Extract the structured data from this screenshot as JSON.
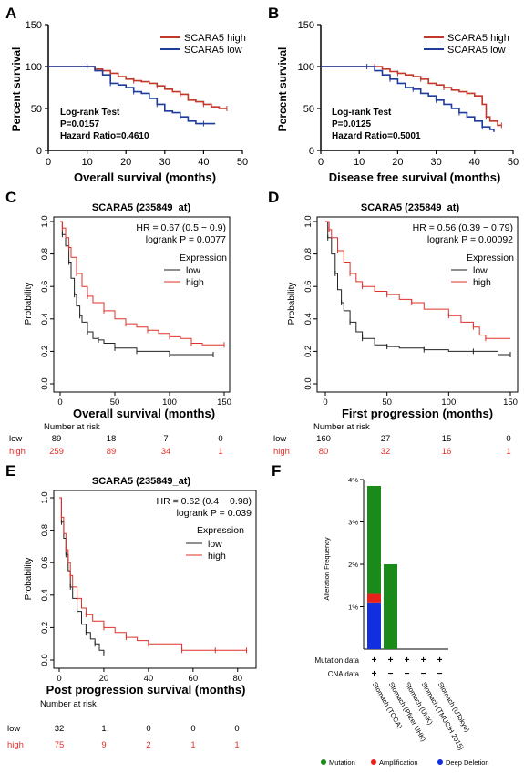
{
  "panel_letters": [
    "A",
    "B",
    "C",
    "D",
    "E",
    "F"
  ],
  "colors": {
    "high": "#c0392b",
    "low": "#1f3c9b",
    "kmHigh": "#e0302a",
    "kmLow": "#222222",
    "mutation": "#1a8a1a",
    "amplification": "#e8201a",
    "deletion": "#1030e0"
  },
  "panelA": {
    "xlabel": "Overall survival (months)",
    "ylabel": "Percent survival",
    "legend_high": "SCARA5 high",
    "legend_low": "SCARA5 low",
    "stat1": "Log-rank Test",
    "stat2": "P=0.0157",
    "stat3": "Hazard  Ratio=0.4610",
    "xticks": [
      "0",
      "10",
      "20",
      "30",
      "40",
      "50"
    ],
    "yticks": [
      "0",
      "50",
      "100",
      "150"
    ]
  },
  "panelB": {
    "xlabel": "Disease free survival (months)",
    "ylabel": "Percent survival",
    "legend_high": "SCARA5 high",
    "legend_low": "SCARA5 low",
    "stat1": "Log-rank Test",
    "stat2": "P=0.0125",
    "stat3": "Hazard  Ratio=0.5001",
    "xticks": [
      "0",
      "10",
      "20",
      "30",
      "40",
      "50"
    ],
    "yticks": [
      "0",
      "50",
      "100",
      "150"
    ]
  },
  "panelC": {
    "title": "SCARA5 (235849_at)",
    "hr": "HR = 0.67 (0.5 − 0.9)",
    "logrank": "logrank P = 0.0077",
    "legend_title": "Expression",
    "legend_low": "low",
    "legend_high": "high",
    "ylabel": "Probability",
    "xlabel": "Overall survival (months)",
    "xticks": [
      "0",
      "50",
      "100",
      "150"
    ],
    "yticks": [
      "0.0",
      "0.2",
      "0.4",
      "0.6",
      "0.8",
      "1.0"
    ],
    "risk_title": "Number at risk",
    "risk_low_label": "low",
    "risk_low": [
      "89",
      "18",
      "7",
      "0"
    ],
    "risk_high_label": "high",
    "risk_high": [
      "259",
      "89",
      "34",
      "1"
    ]
  },
  "panelD": {
    "title": "SCARA5 (235849_at)",
    "hr": "HR = 0.56 (0.39 − 0.79)",
    "logrank": "logrank P = 0.00092",
    "legend_title": "Expression",
    "legend_low": "low",
    "legend_high": "high",
    "ylabel": "Probability",
    "xlabel": "First progression (months)",
    "xticks": [
      "0",
      "50",
      "100",
      "150"
    ],
    "yticks": [
      "0.0",
      "0.2",
      "0.4",
      "0.6",
      "0.8",
      "1.0"
    ],
    "risk_title": "Number at risk",
    "risk_low_label": "low",
    "risk_low": [
      "160",
      "27",
      "15",
      "0"
    ],
    "risk_high_label": "high",
    "risk_high": [
      "80",
      "32",
      "16",
      "1"
    ]
  },
  "panelE": {
    "title": "SCARA5 (235849_at)",
    "hr": "HR = 0.62 (0.4 − 0.98)",
    "logrank": "logrank P = 0.039",
    "legend_title": "Expression",
    "legend_low": "low",
    "legend_high": "high",
    "ylabel": "Probability",
    "xlabel": "Post progression survival (months)",
    "xticks": [
      "0",
      "20",
      "40",
      "60",
      "80"
    ],
    "yticks": [
      "0.0",
      "0.2",
      "0.4",
      "0.6",
      "0.8",
      "1.0"
    ],
    "risk_title": "Number at risk",
    "risk_low_label": "low",
    "risk_low": [
      "32",
      "1",
      "0",
      "0",
      "0"
    ],
    "risk_high_label": "high",
    "risk_high": [
      "75",
      "9",
      "2",
      "1",
      "1"
    ]
  },
  "panelF": {
    "ylabel": "Alteration Frequency",
    "yticks": [
      "1%",
      "2%",
      "3%",
      "4%"
    ],
    "row1": "Mutation data",
    "row2": "CNA data",
    "studies": [
      "Stomach (TCGA)",
      "Stomach (Pfizer UHK)",
      "Stomach (UHK)",
      "Stomach (TMUCIH 2015)",
      "Stomach (UTokyo)"
    ],
    "legend": [
      "Mutation",
      "Amplification",
      "Deep Deletion"
    ]
  },
  "chart_data": [
    {
      "type": "line",
      "title": "",
      "xlabel": "Overall survival (months)",
      "ylabel": "Percent survival",
      "xlim": [
        0,
        50
      ],
      "ylim": [
        0,
        150
      ],
      "series": [
        {
          "name": "SCARA5 high",
          "x": [
            0,
            10,
            12,
            14,
            16,
            18,
            20,
            22,
            24,
            26,
            28,
            30,
            32,
            34,
            36,
            38,
            40,
            42,
            44,
            46
          ],
          "y": [
            100,
            100,
            97,
            95,
            92,
            88,
            85,
            83,
            82,
            80,
            77,
            73,
            70,
            67,
            60,
            58,
            55,
            52,
            50,
            50
          ]
        },
        {
          "name": "SCARA5 low",
          "x": [
            0,
            10,
            12,
            14,
            16,
            18,
            20,
            22,
            24,
            26,
            28,
            30,
            32,
            34,
            36,
            38,
            40,
            42,
            43
          ],
          "y": [
            100,
            100,
            95,
            90,
            80,
            78,
            75,
            70,
            68,
            62,
            55,
            47,
            45,
            40,
            35,
            32,
            32,
            32,
            32
          ]
        }
      ]
    },
    {
      "type": "line",
      "title": "",
      "xlabel": "Disease free survival (months)",
      "ylabel": "Percent survival",
      "xlim": [
        0,
        50
      ],
      "ylim": [
        0,
        150
      ],
      "series": [
        {
          "name": "SCARA5 high",
          "x": [
            0,
            14,
            16,
            18,
            20,
            22,
            24,
            26,
            28,
            30,
            32,
            34,
            36,
            38,
            40,
            42,
            43,
            44,
            46,
            47
          ],
          "y": [
            100,
            100,
            97,
            94,
            92,
            90,
            88,
            85,
            80,
            78,
            75,
            72,
            70,
            68,
            65,
            55,
            40,
            35,
            30,
            30
          ]
        },
        {
          "name": "SCARA5 low",
          "x": [
            0,
            12,
            14,
            16,
            18,
            20,
            22,
            24,
            26,
            28,
            30,
            32,
            34,
            36,
            38,
            40,
            42,
            44,
            45
          ],
          "y": [
            100,
            100,
            95,
            90,
            85,
            80,
            75,
            73,
            68,
            65,
            60,
            55,
            50,
            45,
            40,
            35,
            28,
            25,
            22
          ]
        }
      ]
    },
    {
      "type": "line",
      "title": "SCARA5 (235849_at)",
      "xlabel": "Overall survival (months)",
      "ylabel": "Probability",
      "xlim": [
        0,
        150
      ],
      "ylim": [
        0,
        1
      ],
      "series": [
        {
          "name": "low",
          "x": [
            0,
            2,
            5,
            8,
            10,
            13,
            15,
            18,
            20,
            25,
            30,
            35,
            40,
            50,
            60,
            70,
            80,
            100,
            120,
            140
          ],
          "y": [
            1,
            0.92,
            0.85,
            0.75,
            0.65,
            0.55,
            0.48,
            0.42,
            0.38,
            0.32,
            0.28,
            0.27,
            0.25,
            0.22,
            0.22,
            0.2,
            0.2,
            0.18,
            0.18,
            0.18
          ]
        },
        {
          "name": "high",
          "x": [
            0,
            2,
            5,
            8,
            10,
            15,
            20,
            25,
            30,
            40,
            50,
            60,
            70,
            80,
            90,
            100,
            110,
            120,
            130,
            150
          ],
          "y": [
            1,
            0.96,
            0.9,
            0.84,
            0.78,
            0.68,
            0.6,
            0.54,
            0.5,
            0.45,
            0.4,
            0.37,
            0.35,
            0.33,
            0.31,
            0.29,
            0.28,
            0.25,
            0.24,
            0.24
          ]
        }
      ]
    },
    {
      "type": "line",
      "title": "SCARA5 (235849_at)",
      "xlabel": "First progression (months)",
      "ylabel": "Probability",
      "xlim": [
        0,
        150
      ],
      "ylim": [
        0,
        1
      ],
      "series": [
        {
          "name": "low",
          "x": [
            0,
            2,
            5,
            8,
            10,
            13,
            15,
            20,
            25,
            30,
            40,
            50,
            60,
            80,
            100,
            120,
            140,
            150
          ],
          "y": [
            1,
            0.9,
            0.8,
            0.68,
            0.58,
            0.5,
            0.45,
            0.38,
            0.32,
            0.28,
            0.24,
            0.23,
            0.22,
            0.21,
            0.2,
            0.2,
            0.18,
            0.18
          ]
        },
        {
          "name": "high",
          "x": [
            0,
            3,
            5,
            10,
            15,
            20,
            25,
            30,
            40,
            50,
            60,
            70,
            80,
            100,
            110,
            120,
            125,
            130,
            150
          ],
          "y": [
            1,
            0.95,
            0.9,
            0.82,
            0.75,
            0.68,
            0.63,
            0.6,
            0.57,
            0.55,
            0.52,
            0.5,
            0.46,
            0.42,
            0.38,
            0.35,
            0.3,
            0.28,
            0.28
          ]
        }
      ]
    },
    {
      "type": "line",
      "title": "SCARA5 (235849_at)",
      "xlabel": "Post progression survival (months)",
      "ylabel": "Probability",
      "xlim": [
        0,
        85
      ],
      "ylim": [
        0,
        1
      ],
      "series": [
        {
          "name": "low",
          "x": [
            0,
            1,
            2,
            3,
            4,
            5,
            6,
            8,
            10,
            12,
            14,
            16,
            18,
            20
          ],
          "y": [
            1,
            0.85,
            0.75,
            0.65,
            0.55,
            0.45,
            0.38,
            0.3,
            0.22,
            0.17,
            0.13,
            0.1,
            0.06,
            0.04
          ]
        },
        {
          "name": "high",
          "x": [
            0,
            1,
            2,
            3,
            4,
            5,
            6,
            8,
            10,
            12,
            15,
            20,
            25,
            30,
            35,
            40,
            50,
            55,
            60,
            70,
            80,
            84
          ],
          "y": [
            1,
            0.88,
            0.78,
            0.68,
            0.6,
            0.52,
            0.45,
            0.38,
            0.32,
            0.28,
            0.24,
            0.2,
            0.17,
            0.14,
            0.12,
            0.1,
            0.1,
            0.06,
            0.06,
            0.06,
            0.06,
            0.06
          ]
        }
      ]
    },
    {
      "type": "bar",
      "title": "",
      "ylabel": "Alteration Frequency",
      "ylim": [
        0,
        4
      ],
      "categories": [
        "Stomach (TCGA)",
        "Stomach (Pfizer UHK)",
        "Stomach (UHK)",
        "Stomach (TMUCIH 2015)",
        "Stomach (UTokyo)"
      ],
      "series": [
        {
          "name": "Deep Deletion",
          "values": [
            1.1,
            0,
            0,
            0,
            0
          ]
        },
        {
          "name": "Amplification",
          "values": [
            0.2,
            0,
            0,
            0,
            0
          ]
        },
        {
          "name": "Mutation",
          "values": [
            2.55,
            2.0,
            0,
            0,
            0
          ]
        }
      ]
    }
  ]
}
